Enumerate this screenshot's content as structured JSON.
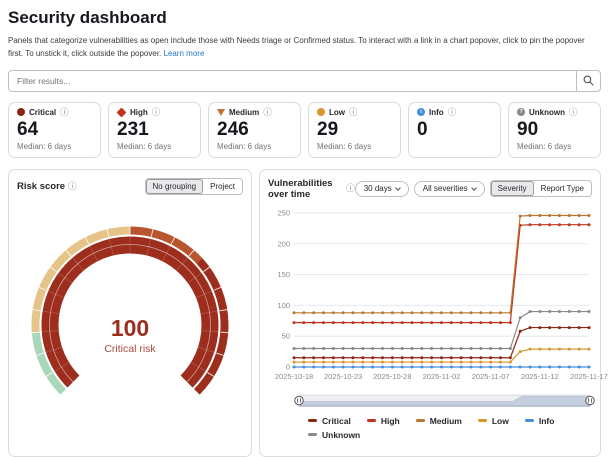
{
  "page": {
    "title": "Security dashboard",
    "description": "Panels that categorize vulnerabilities as open include those with Needs triage or Confirmed status. To interact with a link in a chart popover, click to pin the popover first. To unstick it, click outside the popover.",
    "learn_more_label": "Learn more"
  },
  "icons": {
    "info": "ⓘ"
  },
  "filter": {
    "placeholder": "Filter results..."
  },
  "severity_cards": [
    {
      "label": "Critical",
      "value": "64",
      "median": "Median: 6 days",
      "color": "#8b2615",
      "shape": "circle",
      "glyph": ""
    },
    {
      "label": "High",
      "value": "231",
      "median": "Median: 6 days",
      "color": "#c0341d",
      "shape": "diamond",
      "glyph": ""
    },
    {
      "label": "Medium",
      "value": "246",
      "median": "Median: 6 days",
      "color": "#b87730",
      "shape": "triangle-down",
      "glyph": ""
    },
    {
      "label": "Low",
      "value": "29",
      "median": "Median: 6 days",
      "color": "#d99530",
      "shape": "circle",
      "glyph": ""
    },
    {
      "label": "Info",
      "value": "0",
      "median": "",
      "color": "#428fdc",
      "shape": "circle",
      "glyph": "i"
    },
    {
      "label": "Unknown",
      "value": "90",
      "median": "Median: 6 days",
      "color": "#89888d",
      "shape": "circle",
      "glyph": "?"
    }
  ],
  "risk_panel": {
    "title": "Risk score",
    "grouping_options": [
      "No grouping",
      "Project"
    ],
    "selected_grouping": "No grouping"
  },
  "chart_panel": {
    "title": "Vulnerabilities over time",
    "range_dropdown": "30 days",
    "severities_dropdown": "All severities",
    "mode_options": [
      "Severity",
      "Report Type"
    ],
    "selected_mode": "Severity"
  },
  "chart_data": [
    {
      "type": "gauge",
      "title": "Risk score",
      "value": 100,
      "min": 0,
      "max": 100,
      "value_label": "100",
      "sub_label": "Critical risk",
      "value_color": "#9d2e1e",
      "sub_label_color": "#ab4a3c",
      "segments": [
        {
          "to": 0.15,
          "color": "#a9d7b9"
        },
        {
          "to": 0.5,
          "color": "#e6c388"
        },
        {
          "to": 0.675,
          "color": "#b8552e"
        },
        {
          "to": 1.0,
          "color": "#9d2e1e"
        }
      ]
    },
    {
      "type": "line",
      "title": "Vulnerabilities over time",
      "xlabel": "",
      "ylabel": "",
      "ylim": [
        0,
        250
      ],
      "y_ticks": [
        0,
        50,
        100,
        150,
        200,
        250
      ],
      "grid": true,
      "legend_position": "bottom",
      "x": [
        "2025-10-18",
        "2025-10-19",
        "2025-10-20",
        "2025-10-21",
        "2025-10-22",
        "2025-10-23",
        "2025-10-24",
        "2025-10-25",
        "2025-10-26",
        "2025-10-27",
        "2025-10-28",
        "2025-10-29",
        "2025-10-30",
        "2025-10-31",
        "2025-11-01",
        "2025-11-02",
        "2025-11-03",
        "2025-11-04",
        "2025-11-05",
        "2025-11-06",
        "2025-11-07",
        "2025-11-08",
        "2025-11-09",
        "2025-11-10",
        "2025-11-11",
        "2025-11-12",
        "2025-11-13",
        "2025-11-14",
        "2025-11-15",
        "2025-11-16",
        "2025-11-17"
      ],
      "x_tick_every": 5,
      "series": [
        {
          "name": "Critical",
          "color": "#8b2615",
          "values": [
            15,
            15,
            15,
            15,
            15,
            15,
            15,
            15,
            15,
            15,
            15,
            15,
            15,
            15,
            15,
            15,
            15,
            15,
            15,
            15,
            15,
            15,
            15,
            58,
            64,
            64,
            64,
            64,
            64,
            64,
            64
          ]
        },
        {
          "name": "High",
          "color": "#c0341d",
          "values": [
            72,
            72,
            72,
            72,
            72,
            72,
            72,
            72,
            72,
            72,
            72,
            72,
            72,
            72,
            72,
            72,
            72,
            72,
            72,
            72,
            72,
            72,
            72,
            230,
            231,
            231,
            231,
            231,
            231,
            231,
            231
          ]
        },
        {
          "name": "Medium",
          "color": "#b87730",
          "values": [
            88,
            88,
            88,
            88,
            88,
            88,
            88,
            88,
            88,
            88,
            88,
            88,
            88,
            88,
            88,
            88,
            88,
            88,
            88,
            88,
            88,
            88,
            88,
            245,
            246,
            246,
            246,
            246,
            246,
            246,
            246
          ]
        },
        {
          "name": "Low",
          "color": "#d99530",
          "values": [
            8,
            8,
            8,
            8,
            8,
            8,
            8,
            8,
            8,
            8,
            8,
            8,
            8,
            8,
            8,
            8,
            8,
            8,
            8,
            8,
            8,
            8,
            8,
            25,
            29,
            29,
            29,
            29,
            29,
            29,
            29
          ]
        },
        {
          "name": "Info",
          "color": "#428fdc",
          "values": [
            0,
            0,
            0,
            0,
            0,
            0,
            0,
            0,
            0,
            0,
            0,
            0,
            0,
            0,
            0,
            0,
            0,
            0,
            0,
            0,
            0,
            0,
            0,
            0,
            0,
            0,
            0,
            0,
            0,
            0,
            0
          ]
        },
        {
          "name": "Unknown",
          "color": "#89888d",
          "values": [
            30,
            30,
            30,
            30,
            30,
            30,
            30,
            30,
            30,
            30,
            30,
            30,
            30,
            30,
            30,
            30,
            30,
            30,
            30,
            30,
            30,
            30,
            30,
            80,
            90,
            90,
            90,
            90,
            90,
            90,
            90
          ]
        }
      ]
    }
  ]
}
